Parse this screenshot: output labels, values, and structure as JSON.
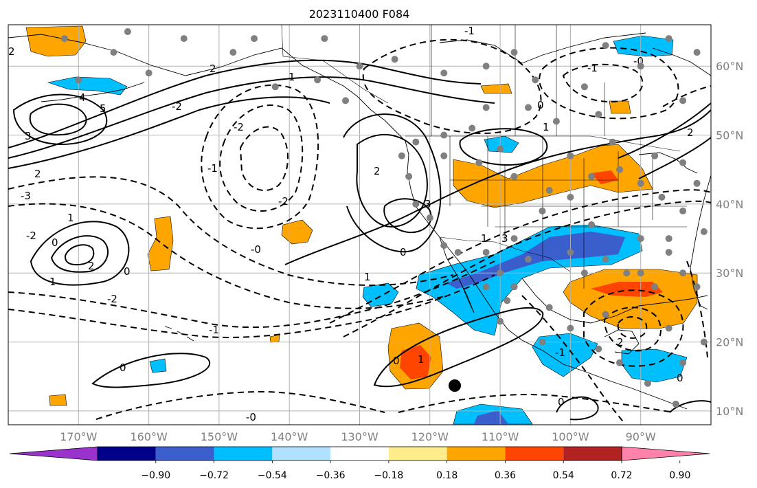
{
  "title": "2023110400 F084",
  "map": {
    "lon_range": [
      -180,
      -80
    ],
    "lat_range": [
      8,
      66
    ],
    "lon_ticks": [
      {
        "lon": -170,
        "label": "170°W"
      },
      {
        "lon": -160,
        "label": "160°W"
      },
      {
        "lon": -150,
        "label": "150°W"
      },
      {
        "lon": -140,
        "label": "140°W"
      },
      {
        "lon": -130,
        "label": "130°W"
      },
      {
        "lon": -120,
        "label": "120°W"
      },
      {
        "lon": -110,
        "label": "110°W"
      },
      {
        "lon": -100,
        "label": "100°W"
      },
      {
        "lon": -90,
        "label": "90°W"
      }
    ],
    "lat_ticks": [
      {
        "lat": 60,
        "label": "60°N"
      },
      {
        "lat": 50,
        "label": "50°N"
      },
      {
        "lat": 40,
        "label": "40°N"
      },
      {
        "lat": 30,
        "label": "30°N"
      },
      {
        "lat": 20,
        "label": "20°N"
      },
      {
        "lat": 10,
        "label": "10°N"
      }
    ],
    "gridlines": true,
    "contour_labels": [
      "-1",
      "-2",
      "-3",
      "0",
      "1",
      "2",
      "3",
      "4",
      "5",
      "-0"
    ]
  },
  "colorbar": {
    "colors": [
      "#9a32cd",
      "#00008b",
      "#3a5fcd",
      "#00bfff",
      "#b0e2ff",
      "#ffffff",
      "#ffec8b",
      "#ffa500",
      "#ff4500",
      "#b22222",
      "#ff82ab"
    ],
    "labels": [
      "−0.90",
      "−0.72",
      "−0.54",
      "−0.36",
      "−0.18",
      "0.18",
      "0.36",
      "0.54",
      "0.72",
      "0.90"
    ],
    "extend": "both"
  },
  "colors": {
    "land_outline": "#000000",
    "grid": "#b0b0b0",
    "station_dot": "#808080"
  }
}
